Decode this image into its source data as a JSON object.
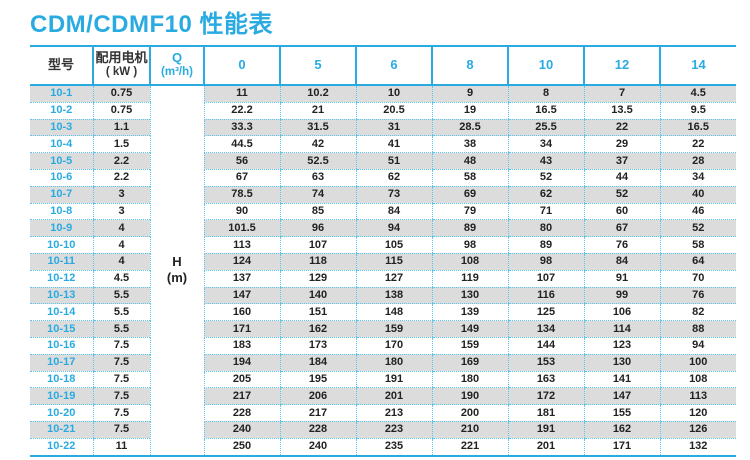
{
  "page": {
    "title": "CDM/CDMF10 性能表"
  },
  "colors": {
    "accent": "#29abe2",
    "dotted_border": "#5cc6ee",
    "stripe": "#dcdcdc",
    "data_text": "#222222"
  },
  "table": {
    "header": {
      "model": "型号",
      "motor_line1": "配用电机",
      "motor_line2": "( kW )",
      "q_line1": "Q",
      "q_line2": "(m³/h)",
      "flow_columns": [
        "0",
        "5",
        "6",
        "8",
        "10",
        "12",
        "14"
      ]
    },
    "h_cell": {
      "line1": "H",
      "line2": "(m)"
    },
    "rows": [
      {
        "model": "10-1",
        "kw": "0.75",
        "values": [
          "11",
          "10.2",
          "10",
          "9",
          "8",
          "7",
          "4.5"
        ]
      },
      {
        "model": "10-2",
        "kw": "0.75",
        "values": [
          "22.2",
          "21",
          "20.5",
          "19",
          "16.5",
          "13.5",
          "9.5"
        ]
      },
      {
        "model": "10-3",
        "kw": "1.1",
        "values": [
          "33.3",
          "31.5",
          "31",
          "28.5",
          "25.5",
          "22",
          "16.5"
        ]
      },
      {
        "model": "10-4",
        "kw": "1.5",
        "values": [
          "44.5",
          "42",
          "41",
          "38",
          "34",
          "29",
          "22"
        ]
      },
      {
        "model": "10-5",
        "kw": "2.2",
        "values": [
          "56",
          "52.5",
          "51",
          "48",
          "43",
          "37",
          "28"
        ]
      },
      {
        "model": "10-6",
        "kw": "2.2",
        "values": [
          "67",
          "63",
          "62",
          "58",
          "52",
          "44",
          "34"
        ]
      },
      {
        "model": "10-7",
        "kw": "3",
        "values": [
          "78.5",
          "74",
          "73",
          "69",
          "62",
          "52",
          "40"
        ]
      },
      {
        "model": "10-8",
        "kw": "3",
        "values": [
          "90",
          "85",
          "84",
          "79",
          "71",
          "60",
          "46"
        ]
      },
      {
        "model": "10-9",
        "kw": "4",
        "values": [
          "101.5",
          "96",
          "94",
          "89",
          "80",
          "67",
          "52"
        ]
      },
      {
        "model": "10-10",
        "kw": "4",
        "values": [
          "113",
          "107",
          "105",
          "98",
          "89",
          "76",
          "58"
        ]
      },
      {
        "model": "10-11",
        "kw": "4",
        "values": [
          "124",
          "118",
          "115",
          "108",
          "98",
          "84",
          "64"
        ]
      },
      {
        "model": "10-12",
        "kw": "4.5",
        "values": [
          "137",
          "129",
          "127",
          "119",
          "107",
          "91",
          "70"
        ]
      },
      {
        "model": "10-13",
        "kw": "5.5",
        "values": [
          "147",
          "140",
          "138",
          "130",
          "116",
          "99",
          "76"
        ]
      },
      {
        "model": "10-14",
        "kw": "5.5",
        "values": [
          "160",
          "151",
          "148",
          "139",
          "125",
          "106",
          "82"
        ]
      },
      {
        "model": "10-15",
        "kw": "5.5",
        "values": [
          "171",
          "162",
          "159",
          "149",
          "134",
          "114",
          "88"
        ]
      },
      {
        "model": "10-16",
        "kw": "7.5",
        "values": [
          "183",
          "173",
          "170",
          "159",
          "144",
          "123",
          "94"
        ]
      },
      {
        "model": "10-17",
        "kw": "7.5",
        "values": [
          "194",
          "184",
          "180",
          "169",
          "153",
          "130",
          "100"
        ]
      },
      {
        "model": "10-18",
        "kw": "7.5",
        "values": [
          "205",
          "195",
          "191",
          "180",
          "163",
          "141",
          "108"
        ]
      },
      {
        "model": "10-19",
        "kw": "7.5",
        "values": [
          "217",
          "206",
          "201",
          "190",
          "172",
          "147",
          "113"
        ]
      },
      {
        "model": "10-20",
        "kw": "7.5",
        "values": [
          "228",
          "217",
          "213",
          "200",
          "181",
          "155",
          "120"
        ]
      },
      {
        "model": "10-21",
        "kw": "7.5",
        "values": [
          "240",
          "228",
          "223",
          "210",
          "191",
          "162",
          "126"
        ]
      },
      {
        "model": "10-22",
        "kw": "11",
        "values": [
          "250",
          "240",
          "235",
          "221",
          "201",
          "171",
          "132"
        ]
      }
    ]
  }
}
